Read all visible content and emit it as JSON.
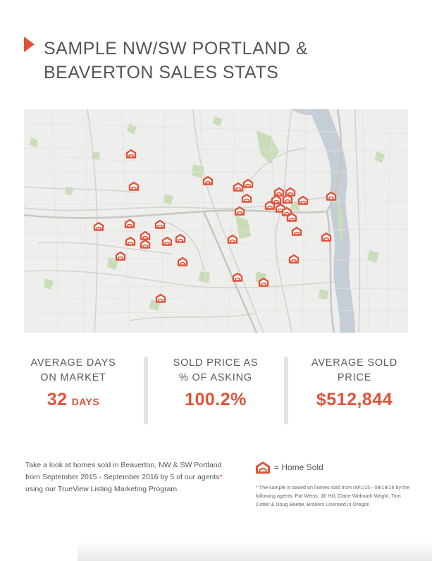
{
  "header": {
    "title_line1": "SAMPLE NW/SW PORTLAND &",
    "title_line2": "BEAVERTON SALES STATS"
  },
  "map": {
    "marker_icon": "home-sold-icon",
    "marker_color": "#e0533a",
    "markers": [
      [
        186,
        218
      ],
      [
        190,
        264
      ],
      [
        295,
        256
      ],
      [
        338,
        265
      ],
      [
        352,
        260
      ],
      [
        396,
        272
      ],
      [
        412,
        272
      ],
      [
        470,
        278
      ],
      [
        350,
        281
      ],
      [
        392,
        283
      ],
      [
        408,
        282
      ],
      [
        430,
        284
      ],
      [
        383,
        291
      ],
      [
        398,
        295
      ],
      [
        340,
        299
      ],
      [
        407,
        300
      ],
      [
        414,
        308
      ],
      [
        140,
        321
      ],
      [
        184,
        317
      ],
      [
        227,
        318
      ],
      [
        206,
        334
      ],
      [
        185,
        342
      ],
      [
        206,
        346
      ],
      [
        237,
        342
      ],
      [
        256,
        338
      ],
      [
        330,
        339
      ],
      [
        421,
        328
      ],
      [
        463,
        336
      ],
      [
        171,
        363
      ],
      [
        259,
        371
      ],
      [
        417,
        367
      ],
      [
        337,
        393
      ],
      [
        374,
        400
      ],
      [
        228,
        423
      ]
    ]
  },
  "stats": [
    {
      "label": "AVERAGE DAYS\nON MARKET",
      "value": "32",
      "unit": "DAYS"
    },
    {
      "label": "SOLD PRICE AS\n% OF ASKING",
      "value": "100.2%",
      "unit": ""
    },
    {
      "label": "AVERAGE SOLD\nPRICE",
      "value": "$512,844",
      "unit": ""
    }
  ],
  "blurb": {
    "before": "Take a look at homes sold in Beaverton, NW & SW Portland from September 2015 - September 2016 by 5 of our agents",
    "asterisk": "*",
    "after": " using our TrueView Listing Marketing Program."
  },
  "legend": {
    "label": "= Home Sold"
  },
  "footnote": {
    "asterisk": "*",
    "text": " The sample is based on homes sold from 09/1/15 - 09/19/16  by the following agents: Pat Weiss, Jill Hill, Claire Widmark-Wright, Tom Cotter & Doug Beebe. Brokers Licensed in Oregon"
  },
  "colors": {
    "accent": "#e0533a",
    "text": "#555555",
    "map_bg": "#eeeeec",
    "park": "#c9ddb8",
    "river": "#c5cdd6",
    "divider": "#e4e4e4"
  }
}
